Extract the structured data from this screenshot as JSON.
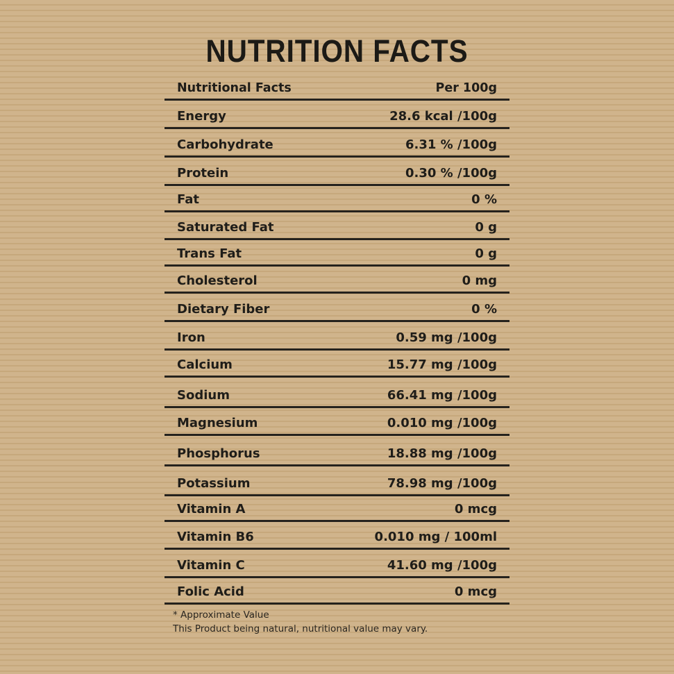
{
  "title": "NUTRITION FACTS",
  "header": {
    "label": "Nutritional Facts",
    "value": "Per 100g"
  },
  "rows": [
    {
      "label": "Energy",
      "value": "28.6 kcal /100g"
    },
    {
      "label": "Carbohydrate",
      "value": "6.31 % /100g"
    },
    {
      "label": "Protein",
      "value": "0.30 % /100g"
    },
    {
      "label": "Fat",
      "value": "0 %"
    },
    {
      "label": "Saturated Fat",
      "value": "0 g"
    },
    {
      "label": "Trans Fat",
      "value": "0 g"
    },
    {
      "label": "Cholesterol",
      "value": "0 mg"
    },
    {
      "label": "Dietary Fiber",
      "value": "0 %"
    },
    {
      "label": "Iron",
      "value": "0.59 mg /100g"
    },
    {
      "label": "Calcium",
      "value": "15.77 mg /100g"
    },
    {
      "label": "Sodium",
      "value": "66.41 mg /100g"
    },
    {
      "label": "Magnesium",
      "value": "0.010 mg /100g"
    },
    {
      "label": "Phosphorus",
      "value": "18.88 mg /100g"
    },
    {
      "label": "Potassium",
      "value": "78.98 mg /100g"
    },
    {
      "label": "Vitamin A",
      "value": "0 mcg"
    },
    {
      "label": "Vitamin B6",
      "value": "0.010 mg / 100ml"
    },
    {
      "label": "Vitamin C",
      "value": "41.60 mg /100g"
    },
    {
      "label": "Folic Acid",
      "value": "0 mcg"
    }
  ],
  "footnote": {
    "line1": "* Approximate Value",
    "line2": "This Product being natural, nutritional value may vary."
  }
}
